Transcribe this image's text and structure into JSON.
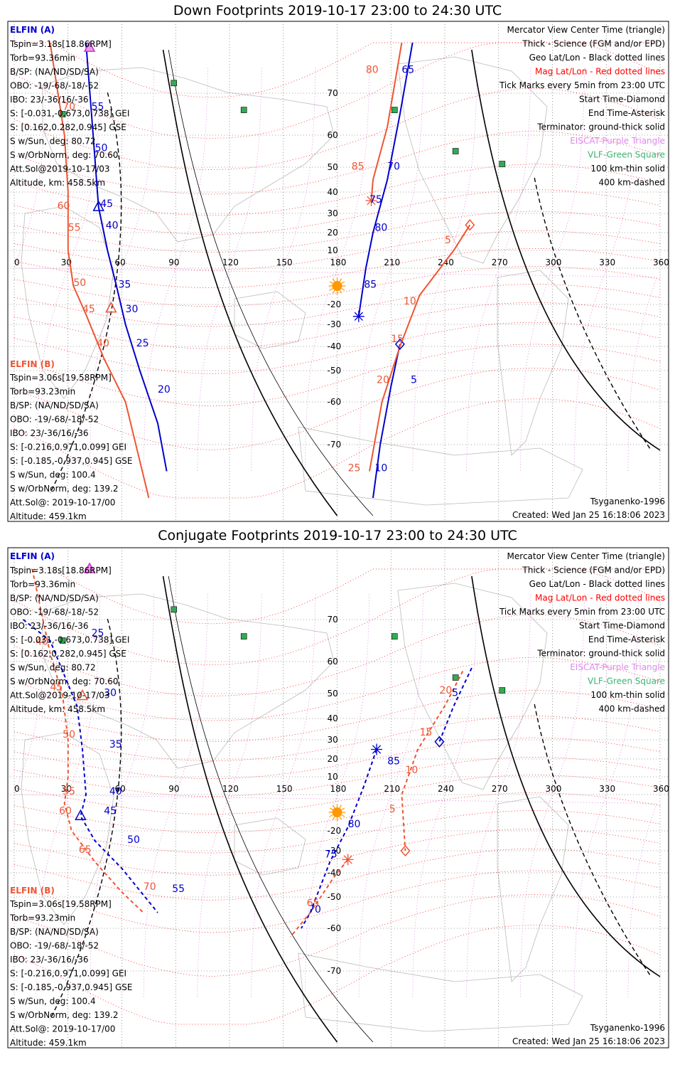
{
  "panels": [
    {
      "title": "Down Footprints 2019-10-17 23:00 to 24:30 UTC",
      "footer_left": "",
      "model": "Tsyganenko-1996",
      "created": "Created: Wed Jan 25 16:18:06 2023"
    },
    {
      "title": "Conjugate Footprints 2019-10-17 23:00 to 24:30 UTC",
      "model": "Tsyganenko-1996",
      "created": "Created: Wed Jan 25 16:18:06 2023"
    }
  ],
  "elfin_a": {
    "name": "ELFIN (A)",
    "lines": [
      "Tspin=3.18s[18.86RPM]",
      "Torb=93.36min",
      "B/SP: (NA/ND/SD/SA)",
      "OBO: -19/-68/-18/-52",
      "IBO: 23/-36/16/-36",
      "S: [-0.031,-0.673,0.738] GEI",
      "S: [0.162,0.282,0.945] GSE",
      "S w/Sun, deg: 80.72",
      "S w/OrbNorm, deg: 70.60",
      "Att.Sol@2019-10-17/03",
      "Altitude, km: 458.5km"
    ]
  },
  "elfin_b": {
    "name": "ELFIN (B)",
    "lines": [
      "Tspin=3.06s[19.58RPM]",
      "Torb=93.23min",
      "B/SP: (NA/ND/SD/SA)",
      "OBO: -19/-68/-18/-52",
      "IBO: 23/-36/16/-36",
      "S: [-0.216,0.971,0.099] GEI",
      "S: [-0.185,-0.937,0.945] GSE",
      "S w/Sun, deg: 100.4",
      "S w/OrbNorm, deg: 139.2",
      "Att.Sol@: 2019-10-17/00",
      "Altitude: 459.1km"
    ]
  },
  "legend": [
    {
      "text": "Mercator View Center Time (triangle)",
      "color": "#000000"
    },
    {
      "text": "Thick - Science (FGM and/or EPD)",
      "color": "#000000"
    },
    {
      "text": "Geo Lat/Lon - Black dotted lines",
      "color": "#000000"
    },
    {
      "text": "Mag Lat/Lon - Red dotted lines",
      "color": "#ff0000"
    },
    {
      "text": "Tick Marks every 5min from 23:00 UTC",
      "color": "#000000"
    },
    {
      "text": "Start Time-Diamond",
      "color": "#000000"
    },
    {
      "text": "End Time-Asterisk",
      "color": "#000000"
    },
    {
      "text": "Terminator: ground-thick solid",
      "color": "#000000"
    },
    {
      "text": "EISCAT-Purple Triangle",
      "color": "#dd88ee"
    },
    {
      "text": "VLF-Green Square",
      "color": "#3cb371"
    },
    {
      "text": "100 km-thin solid",
      "color": "#000000"
    },
    {
      "text": "400 km-dashed",
      "color": "#000000"
    }
  ],
  "axes": {
    "lon_ticks": [
      "0",
      "30",
      "60",
      "90",
      "120",
      "150",
      "180",
      "210",
      "240",
      "270",
      "300",
      "330",
      "360"
    ],
    "lat_ticks": [
      {
        "value": 70,
        "label": "70"
      },
      {
        "value": 60,
        "label": "60"
      },
      {
        "value": 50,
        "label": "50"
      },
      {
        "value": 40,
        "label": "40"
      },
      {
        "value": 30,
        "label": "30"
      },
      {
        "value": 20,
        "label": "20"
      },
      {
        "value": 10,
        "label": "10"
      },
      {
        "value": -20,
        "label": "-20"
      },
      {
        "value": -30,
        "label": "-30"
      },
      {
        "value": -40,
        "label": "-40"
      },
      {
        "value": -50,
        "label": "-50"
      },
      {
        "value": -60,
        "label": "-60"
      },
      {
        "value": -70,
        "label": "-70"
      }
    ]
  },
  "colors": {
    "elfin_a": "#0000cc",
    "elfin_b": "#ee5533",
    "mag_grid": "#ff0000",
    "eiscat": "#dd88ee",
    "vlf": "#33aa55",
    "sun": "#ff9900"
  },
  "vlf_stations": [
    {
      "lon": 89,
      "lat": 72
    },
    {
      "lon": 128,
      "lat": 66
    },
    {
      "lon": 212,
      "lat": 66
    },
    {
      "lon": 246,
      "lat": 55
    },
    {
      "lon": 272,
      "lat": 51
    },
    {
      "lon": 27,
      "lat": 65
    }
  ],
  "subsolar_point": {
    "lon": 180,
    "lat": -10
  },
  "tracks": {
    "down": {
      "b_start_lon": 254,
      "b_start_lat": 24,
      "a_start_lon": 215,
      "a_start_lat": -39,
      "b_end_lon": 199,
      "b_end_lat": 36,
      "a_end_lon": 192,
      "a_end_lat": -26,
      "a_center_lon": 47,
      "a_center_lat": 33,
      "b_center_lon": 54,
      "b_center_lat": -22
    },
    "conj": {
      "b_start_lon": 218,
      "b_start_lat": -30,
      "a_start_lon": 237,
      "a_start_lat": 29,
      "b_end_lon": 186,
      "b_end_lat": -34,
      "a_end_lon": 202,
      "a_end_lat": 25,
      "a_center_lon": 37,
      "a_center_lat": -12,
      "b_center_lon": 38,
      "b_center_lat": 49
    }
  },
  "down_labels": {
    "a": [
      {
        "text": "65",
        "lon": 216,
        "lat": 74
      },
      {
        "text": "70",
        "lon": 208,
        "lat": 49
      },
      {
        "text": "75",
        "lon": 198,
        "lat": 35
      },
      {
        "text": "80",
        "lon": 201,
        "lat": 21
      },
      {
        "text": "85",
        "lon": 195,
        "lat": -11
      },
      {
        "text": "5",
        "lon": 221,
        "lat": -54
      },
      {
        "text": "10",
        "lon": 201,
        "lat": -75
      },
      {
        "text": "45",
        "lon": 48,
        "lat": 33
      },
      {
        "text": "40",
        "lon": 51,
        "lat": 22
      },
      {
        "text": "35",
        "lon": 58,
        "lat": -11
      },
      {
        "text": "30",
        "lon": 62,
        "lat": -24
      },
      {
        "text": "25",
        "lon": 68,
        "lat": -40
      },
      {
        "text": "20",
        "lon": 80,
        "lat": -57
      },
      {
        "text": "55",
        "lon": 43,
        "lat": 66
      },
      {
        "text": "50",
        "lon": 45,
        "lat": 55
      }
    ],
    "b": [
      {
        "text": "80",
        "lon": 196,
        "lat": 74
      },
      {
        "text": "85",
        "lon": 188,
        "lat": 49
      },
      {
        "text": "5",
        "lon": 240,
        "lat": 14
      },
      {
        "text": "10",
        "lon": 217,
        "lat": -20
      },
      {
        "text": "15",
        "lon": 210,
        "lat": -38
      },
      {
        "text": "20",
        "lon": 202,
        "lat": -54
      },
      {
        "text": "25",
        "lon": 186,
        "lat": -75
      },
      {
        "text": "60",
        "lon": 24,
        "lat": 32
      },
      {
        "text": "55",
        "lon": 30,
        "lat": 21
      },
      {
        "text": "50",
        "lon": 33,
        "lat": -10
      },
      {
        "text": "45",
        "lon": 38,
        "lat": -24
      },
      {
        "text": "40",
        "lon": 46,
        "lat": -40
      },
      {
        "text": "70",
        "lon": 27,
        "lat": 66
      }
    ]
  },
  "conj_labels": {
    "a": [
      {
        "text": "5",
        "lon": 244,
        "lat": 49
      },
      {
        "text": "85",
        "lon": 208,
        "lat": 17
      },
      {
        "text": "80",
        "lon": 186,
        "lat": -18
      },
      {
        "text": "75",
        "lon": 173,
        "lat": -33
      },
      {
        "text": "70",
        "lon": 164,
        "lat": -55
      },
      {
        "text": "25",
        "lon": 43,
        "lat": 66
      },
      {
        "text": "30",
        "lon": 50,
        "lat": 49
      },
      {
        "text": "35",
        "lon": 53,
        "lat": 26
      },
      {
        "text": "40",
        "lon": 53,
        "lat": 0
      },
      {
        "text": "45",
        "lon": 50,
        "lat": -11
      },
      {
        "text": "50",
        "lon": 63,
        "lat": -26
      },
      {
        "text": "55",
        "lon": 88,
        "lat": -48
      }
    ],
    "b": [
      {
        "text": "20",
        "lon": 237,
        "lat": 50
      },
      {
        "text": "15",
        "lon": 226,
        "lat": 32
      },
      {
        "text": "10",
        "lon": 218,
        "lat": 12
      },
      {
        "text": "5",
        "lon": 209,
        "lat": -10
      },
      {
        "text": "65",
        "lon": 163,
        "lat": -53
      },
      {
        "text": "40",
        "lon": 12,
        "lat": 64
      },
      {
        "text": "45",
        "lon": 20,
        "lat": 51
      },
      {
        "text": "50",
        "lon": 27,
        "lat": 31
      },
      {
        "text": "55",
        "lon": 27,
        "lat": 0
      },
      {
        "text": "60",
        "lon": 25,
        "lat": -11
      },
      {
        "text": "65",
        "lon": 36,
        "lat": -31
      },
      {
        "text": "70",
        "lon": 72,
        "lat": -47
      }
    ]
  }
}
